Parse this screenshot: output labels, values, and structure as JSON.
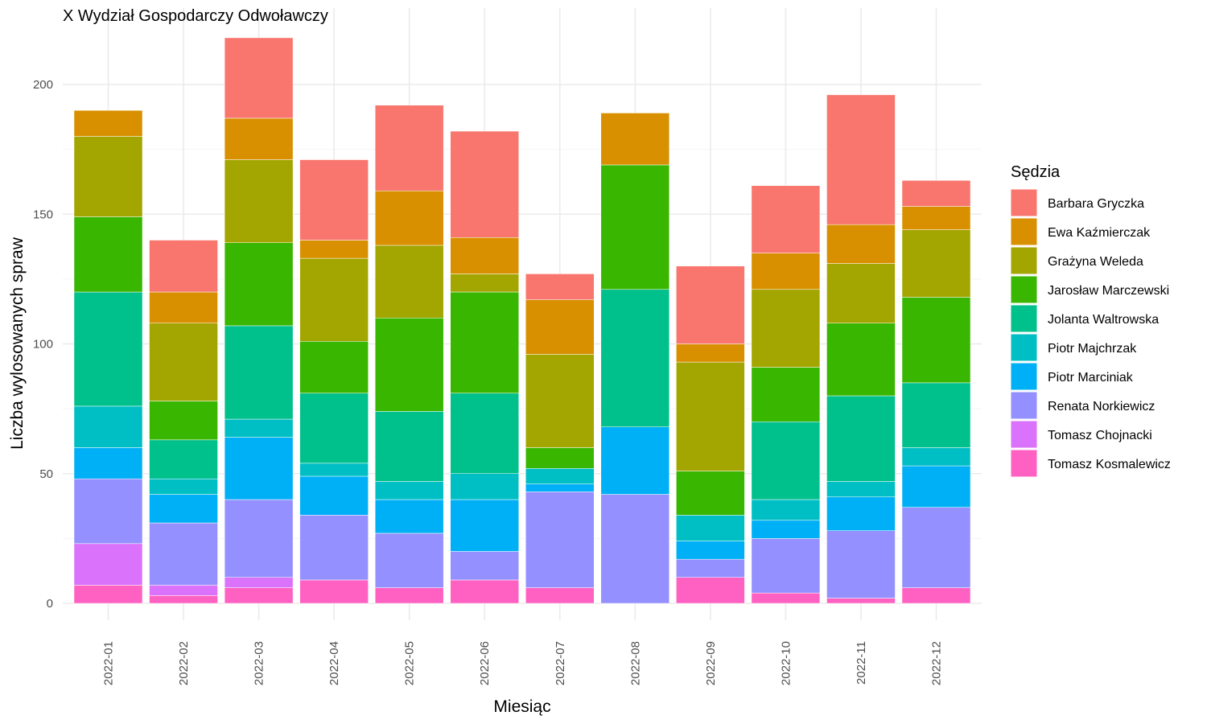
{
  "chart_data": {
    "type": "bar",
    "stacked": true,
    "title": "X Wydział Gospodarczy Odwoławczy",
    "xlabel": "Miesiąc",
    "ylabel": "Liczba wylosowanych spraw",
    "ylim": [
      0,
      220
    ],
    "yticks": [
      0,
      50,
      100,
      150,
      200
    ],
    "grid": true,
    "legend": {
      "title": "Sędzia",
      "position": "right"
    },
    "categories": [
      "2022-01",
      "2022-02",
      "2022-03",
      "2022-04",
      "2022-05",
      "2022-06",
      "2022-07",
      "2022-08",
      "2022-09",
      "2022-10",
      "2022-11",
      "2022-12"
    ],
    "series": [
      {
        "name": "Tomasz Kosmalewicz",
        "color": "#FF61C3",
        "values": [
          7,
          3,
          6,
          9,
          6,
          9,
          6,
          0,
          10,
          4,
          2,
          6
        ]
      },
      {
        "name": "Tomasz Chojnacki",
        "color": "#DB72FB",
        "values": [
          16,
          4,
          4,
          0,
          0,
          0,
          0,
          0,
          0,
          0,
          0,
          0
        ]
      },
      {
        "name": "Renata Norkiewicz",
        "color": "#9590FF",
        "values": [
          25,
          24,
          30,
          25,
          21,
          11,
          37,
          42,
          7,
          21,
          26,
          31
        ]
      },
      {
        "name": "Piotr Marciniak",
        "color": "#00B0F6",
        "values": [
          12,
          11,
          24,
          15,
          13,
          20,
          3,
          26,
          7,
          7,
          13,
          16
        ]
      },
      {
        "name": "Piotr Majchrzak",
        "color": "#00BFC4",
        "values": [
          16,
          6,
          7,
          5,
          7,
          10,
          6,
          0,
          10,
          8,
          6,
          7
        ]
      },
      {
        "name": "Jolanta Waltrowska",
        "color": "#00C08B",
        "values": [
          44,
          15,
          36,
          27,
          27,
          31,
          0,
          53,
          0,
          30,
          33,
          25
        ]
      },
      {
        "name": "Jarosław Marczewski",
        "color": "#39B600",
        "values": [
          29,
          15,
          32,
          20,
          36,
          39,
          8,
          48,
          17,
          21,
          28,
          33
        ]
      },
      {
        "name": "Grażyna Weleda",
        "color": "#A3A500",
        "values": [
          31,
          30,
          32,
          32,
          28,
          7,
          36,
          0,
          42,
          30,
          23,
          26
        ]
      },
      {
        "name": "Ewa Kaźmierczak",
        "color": "#D89000",
        "values": [
          10,
          12,
          16,
          7,
          21,
          14,
          21,
          20,
          7,
          14,
          15,
          9
        ]
      },
      {
        "name": "Barbara Gryczka",
        "color": "#F8766D",
        "values": [
          0,
          20,
          31,
          31,
          33,
          41,
          10,
          0,
          30,
          26,
          50,
          10
        ]
      }
    ]
  }
}
